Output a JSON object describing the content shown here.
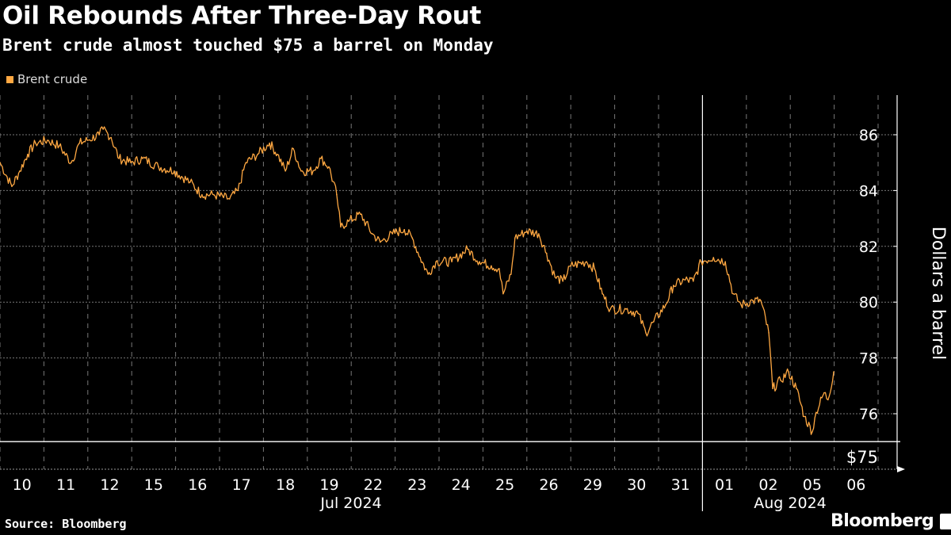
{
  "header": {
    "title": "Oil Rebounds After Three-Day Rout",
    "subtitle": "Brent crude almost touched $75 a barrel on Monday"
  },
  "footer": {
    "source": "Source: Bloomberg",
    "brand": "Bloomberg"
  },
  "chart_data": {
    "type": "line",
    "title": "Oil Rebounds After Three-Day Rout",
    "subtitle": "Brent crude almost touched $75 a barrel on Monday",
    "xlabel": "",
    "ylabel": "Dollars a barrel",
    "ylim": [
      74.0,
      87.5
    ],
    "y_ticks": [
      76,
      78,
      80,
      82,
      84,
      86
    ],
    "y_tick_labels": [
      "76",
      "78",
      "80",
      "82",
      "84",
      "86"
    ],
    "x_tick_labels": [
      "10",
      "11",
      "12",
      "15",
      "16",
      "17",
      "18",
      "19",
      "22",
      "23",
      "24",
      "25",
      "26",
      "29",
      "30",
      "31",
      "01",
      "02",
      "05",
      "06"
    ],
    "month_labels": [
      {
        "label": "Jul 2024",
        "start_day": 0,
        "end_day": 16
      },
      {
        "label": "Aug 2024",
        "start_day": 16,
        "end_day": 20
      }
    ],
    "grid": true,
    "legend": {
      "position": "top-left",
      "entries": [
        "Brent crude"
      ]
    },
    "annotations": [
      {
        "type": "hline",
        "value": 75,
        "label": "$75"
      }
    ],
    "series": [
      {
        "name": "Brent crude",
        "color": "#ffa842",
        "x_unit": "trading days since Jul 10 open",
        "points": [
          [
            0,
            85.0
          ],
          [
            0.27,
            84.15
          ],
          [
            0.45,
            84.7
          ],
          [
            0.63,
            85.3
          ],
          [
            0.81,
            85.7
          ],
          [
            1.08,
            85.8
          ],
          [
            1.35,
            85.6
          ],
          [
            1.62,
            85.0
          ],
          [
            1.81,
            85.7
          ],
          [
            1.99,
            85.8
          ],
          [
            2.26,
            86.0
          ],
          [
            2.35,
            86.2
          ],
          [
            2.53,
            85.9
          ],
          [
            2.71,
            85.15
          ],
          [
            2.98,
            85.0
          ],
          [
            3.25,
            85.15
          ],
          [
            3.61,
            84.85
          ],
          [
            3.97,
            84.7
          ],
          [
            4.33,
            84.3
          ],
          [
            4.6,
            83.85
          ],
          [
            4.87,
            83.85
          ],
          [
            5.23,
            83.7
          ],
          [
            5.42,
            84.0
          ],
          [
            5.6,
            85.0
          ],
          [
            5.87,
            85.3
          ],
          [
            6.14,
            85.7
          ],
          [
            6.32,
            85.3
          ],
          [
            6.5,
            84.7
          ],
          [
            6.68,
            85.5
          ],
          [
            6.86,
            84.7
          ],
          [
            7.13,
            84.7
          ],
          [
            7.31,
            85.15
          ],
          [
            7.49,
            84.85
          ],
          [
            7.67,
            83.85
          ],
          [
            7.76,
            82.7
          ],
          [
            7.94,
            82.9
          ],
          [
            8.21,
            83.15
          ],
          [
            8.48,
            82.45
          ],
          [
            8.66,
            82.15
          ],
          [
            8.94,
            82.45
          ],
          [
            9.21,
            82.6
          ],
          [
            9.39,
            82.3
          ],
          [
            9.57,
            81.6
          ],
          [
            9.75,
            81.0
          ],
          [
            9.93,
            81.45
          ],
          [
            10.29,
            81.45
          ],
          [
            10.65,
            81.9
          ],
          [
            10.92,
            81.45
          ],
          [
            11.19,
            81.3
          ],
          [
            11.37,
            81.2
          ],
          [
            11.46,
            80.3
          ],
          [
            11.64,
            81.0
          ],
          [
            11.73,
            82.3
          ],
          [
            12.0,
            82.55
          ],
          [
            12.27,
            82.45
          ],
          [
            12.45,
            81.75
          ],
          [
            12.64,
            80.9
          ],
          [
            12.82,
            80.75
          ],
          [
            13.0,
            81.3
          ],
          [
            13.36,
            81.45
          ],
          [
            13.54,
            81.2
          ],
          [
            13.72,
            80.3
          ],
          [
            13.9,
            79.75
          ],
          [
            14.26,
            79.75
          ],
          [
            14.53,
            79.6
          ],
          [
            14.71,
            78.9
          ],
          [
            14.89,
            79.3
          ],
          [
            15.16,
            79.9
          ],
          [
            15.34,
            80.6
          ],
          [
            15.61,
            80.8
          ],
          [
            15.79,
            80.75
          ],
          [
            15.97,
            81.45
          ],
          [
            16.25,
            81.6
          ],
          [
            16.52,
            81.45
          ],
          [
            16.7,
            80.3
          ],
          [
            16.88,
            79.9
          ],
          [
            17.15,
            80.05
          ],
          [
            17.33,
            80.05
          ],
          [
            17.51,
            78.9
          ],
          [
            17.6,
            76.9
          ],
          [
            17.78,
            77.2
          ],
          [
            17.96,
            77.5
          ],
          [
            18.14,
            76.9
          ],
          [
            18.32,
            75.9
          ],
          [
            18.5,
            75.35
          ],
          [
            18.59,
            76.05
          ],
          [
            18.77,
            76.75
          ],
          [
            18.86,
            76.5
          ],
          [
            18.99,
            77.5
          ]
        ]
      }
    ]
  }
}
